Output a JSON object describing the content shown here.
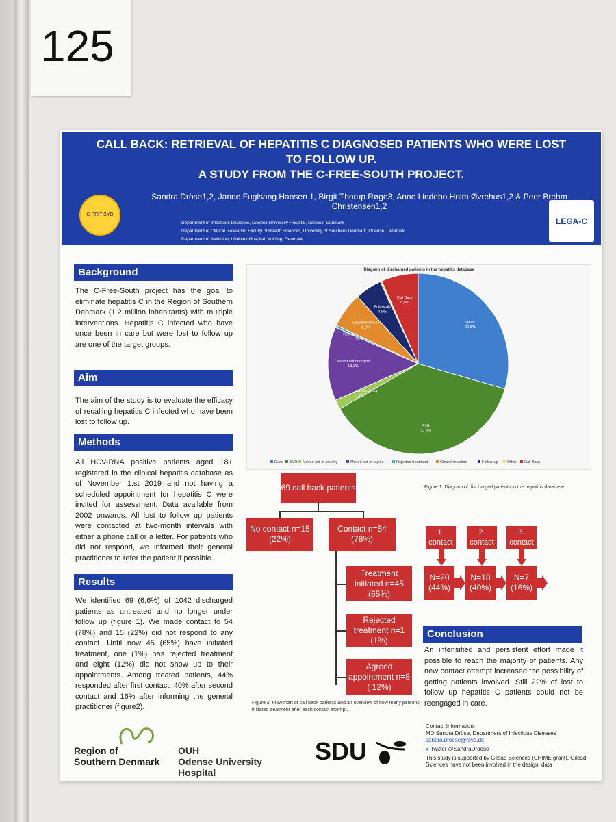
{
  "board_number": "125",
  "header": {
    "title_line1": "CALL BACK: RETRIEVAL OF HEPATITIS C DIAGNOSED PATIENTS WHO WERE LOST",
    "title_line2": "TO FOLLOW UP.",
    "title_line3": "A STUDY FROM THE C-FREE-SOUTH PROJECT.",
    "authors": "Sandra Dröse1,2, Janne Fuglsang Hansen 1, Birgit Thorup Røge3, Anne Lindebo Holm Øvrehus1,2 & Peer Brehm Christensen1,2",
    "dept1": "Department of Infectious Diseases, Odense University Hospital, Odense, Denmark",
    "dept2": "Department of Clinical Research, Faculty of Health Sciences, University of Southern Denmark, Odense, Denmark",
    "dept3": "Department of Medicine, Lillebælt Hospital, Kolding, Denmark",
    "logo_left": "C-FRIT SYD",
    "logo_right": "LEGA-C"
  },
  "background": {
    "heading": "Background",
    "text": "The C-Free-South project has the goal to eliminate hepatitis C in the Region of Southern Denmark (1.2 million inhabitants) with multiple interventions. Hepatitis C infected who have once been in care but were lost to follow up are one of the target groups."
  },
  "aim": {
    "heading": "Aim",
    "text": "The aim of the study is to evaluate the efficacy of recalling hepatitis C infected who have been lost to follow up."
  },
  "methods": {
    "heading": "Methods",
    "text": "All HCV-RNA positive patients aged 18+ registered in the clinical hepatitis database as of November 1.st 2019 and not having a scheduled appointment for hepatitis C were invited for assessment. Data available from 2002 onwards. All lost to follow up patients were contacted at two-month intervals with either a phone call or a letter. For patients who did not respond, we informed their general practitioner to refer the patient if possible."
  },
  "results": {
    "heading": "Results",
    "text": "We identified 69 (6,6%) of 1042 discharged patients as untreated and no longer under follow up (figure 1). We made contact to 54 (78%) and 15 (22%) did not respond to any contact. Until now 45 (65%) have initiated treatment, one (1%) has rejected treatment and eight (12%) did not show up to their appointments. Among treated patients, 44% responded after first contact, 40% after second contact and 16% after informing the general practitioner (figure2)."
  },
  "conclusion": {
    "heading": "Conclusion",
    "text": "An intensified and persistent effort made it possible to reach the majority of patients. Any new contact attempt increased the possibility of getting patients involved. Still 22% of lost to follow up hepatitis C patients could not be reengaged in care."
  },
  "chart_data": {
    "type": "pie",
    "title": "Diagram of discharged patients in the hepatitis database",
    "legend_position": "bottom",
    "slices": [
      {
        "label": "Dead",
        "value": 29.5,
        "display": "29,5%",
        "color": "#3f7fce"
      },
      {
        "label": "SVR",
        "value": 37.2,
        "display": "37,2%",
        "color": "#4d8a2e"
      },
      {
        "label": "Moved out of country",
        "value": 1.7,
        "display": "1,7%",
        "color": "#9ec95a"
      },
      {
        "label": "Moved out of region",
        "value": 13.2,
        "display": "13,2%",
        "color": "#6b3fa0"
      },
      {
        "label": "Rejected treatment",
        "value": 0.4,
        "display": "0,4%",
        "color": "#4eb3c9"
      },
      {
        "label": "Clearet infection",
        "value": 6.3,
        "display": "6,3%",
        "color": "#e18b2c"
      },
      {
        "label": "Follow-up",
        "value": 4.8,
        "display": "4,8%",
        "color": "#1b2a6e"
      },
      {
        "label": "Other",
        "value": 0.3,
        "display": "0,3%",
        "color": "#e8e06a"
      },
      {
        "label": "Call Back",
        "value": 6.6,
        "display": "6,6%",
        "color": "#c9302f"
      }
    ]
  },
  "figure1_caption": "Figure 1. Diagram of discharged patients in the hepatitis database.",
  "flowchart": {
    "root": "69 call back patients",
    "no_contact": "No contact n=15 (22%)",
    "contact": "Contact  n=54 (78%)",
    "treatment": "Treatment initiated n=45 (65%)",
    "rejected": "Rejected treatment n=1 (1%)",
    "agreed": "Agreed appointment n=8 ( 12%)",
    "contact1": "1. contact",
    "contact2": "2. contact",
    "contact3": "3. contact",
    "n1": "N=20 (44%)",
    "n2": "N=18 (40%)",
    "n3": "N=7 (16%)"
  },
  "figure2_caption": "Figure 2. Flowchart of call back patients and an overview of how many persons initiated treatment after each contact attempt.",
  "footer": {
    "logo1_line1": "Region of",
    "logo1_line2": "Southern Denmark",
    "logo2_line1": "OUH",
    "logo2_line2": "Odense University Hospital",
    "logo3": "SDU",
    "contact_heading": "Contact Information:",
    "contact_name": "MD Sandra Dröse, Department of Infectious Diseases",
    "contact_email": "sandra.droese@rsyd.dk",
    "twitter": "Twitter @SandraDroese",
    "support": "This study is supported by Gilead Sciences (CHIME grant). Gilead Sciences have not been involved in the design, data"
  }
}
